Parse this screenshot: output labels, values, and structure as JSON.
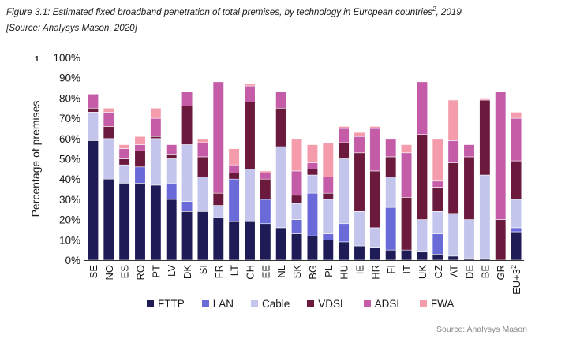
{
  "caption": {
    "line1": "Figure 3.1: Estimated fixed broadband penetration of total premises, by technology in European countries",
    "line1_sup": "2",
    "line1_end": ", 2019",
    "line2": "[Source: Analysys Mason, 2020]"
  },
  "side_note": "1",
  "source": "Source: Analysys Mason",
  "chart_data": {
    "type": "bar",
    "stacked": true,
    "title": "Estimated fixed broadband penetration of total premises, by technology in European countries, 2019",
    "xlabel": "",
    "ylabel": "Percentage of premises",
    "ylim": [
      0,
      100
    ],
    "ytick_labels": [
      "0%",
      "10%",
      "20%",
      "30%",
      "40%",
      "50%",
      "60%",
      "70%",
      "80%",
      "90%",
      "100%"
    ],
    "categories": [
      "SE",
      "NO",
      "ES",
      "RO",
      "PT",
      "LV",
      "DK",
      "SI",
      "FR",
      "LT",
      "CH",
      "EE",
      "NL",
      "SK",
      "BG",
      "PL",
      "HU",
      "IE",
      "HR",
      "FI",
      "IT",
      "UK",
      "CZ",
      "AT",
      "DE",
      "BE",
      "GR",
      "EU+3"
    ],
    "category_sups": [
      "",
      "",
      "",
      "",
      "",
      "",
      "",
      "",
      "",
      "",
      "",
      "",
      "",
      "",
      "",
      "",
      "",
      "",
      "",
      "",
      "",
      "",
      "",
      "",
      "",
      "",
      "",
      "2"
    ],
    "legend_position": "bottom",
    "series": [
      {
        "name": "FTTP",
        "color": "#1e1b56",
        "values": [
          59,
          40,
          38,
          38,
          37,
          30,
          24,
          24,
          21,
          19,
          19,
          18,
          16,
          13,
          12,
          10,
          9,
          7,
          6,
          5,
          5,
          4,
          3,
          2,
          1,
          1,
          0,
          14
        ]
      },
      {
        "name": "LAN",
        "color": "#6a6ad8",
        "values": [
          0,
          0,
          0,
          8,
          0,
          8,
          5,
          0,
          0,
          21,
          0,
          12,
          0,
          7,
          21,
          3,
          9,
          0,
          0,
          21,
          0,
          0,
          10,
          0,
          0,
          0,
          0,
          2
        ]
      },
      {
        "name": "Cable",
        "color": "#c3c5ec",
        "values": [
          14,
          20,
          9,
          0,
          23,
          12,
          28,
          17,
          6,
          0,
          26,
          0,
          40,
          8,
          9,
          17,
          32,
          17,
          10,
          15,
          0,
          16,
          11,
          21,
          19,
          41,
          0,
          14
        ]
      },
      {
        "name": "VDSL",
        "color": "#6b1a3e",
        "values": [
          2,
          6,
          3,
          8,
          1,
          2,
          19,
          10,
          6,
          3,
          33,
          10,
          19,
          4,
          3,
          3,
          8,
          29,
          28,
          10,
          26,
          42,
          12,
          25,
          31,
          37,
          20,
          19
        ]
      },
      {
        "name": "ADSL",
        "color": "#c45ca7",
        "values": [
          7,
          7,
          5,
          3,
          9,
          5,
          7,
          7,
          55,
          4,
          8,
          3,
          8,
          12,
          3,
          8,
          7,
          8,
          21,
          9,
          22,
          26,
          3,
          11,
          6,
          0,
          63,
          21
        ]
      },
      {
        "name": "FWA",
        "color": "#f49bac",
        "values": [
          0,
          2,
          2,
          4,
          5,
          0,
          0,
          2,
          0,
          8,
          1,
          1,
          0,
          16,
          9,
          17,
          1,
          2,
          1,
          0,
          4,
          0,
          21,
          20,
          0,
          1,
          0,
          3
        ]
      }
    ]
  }
}
